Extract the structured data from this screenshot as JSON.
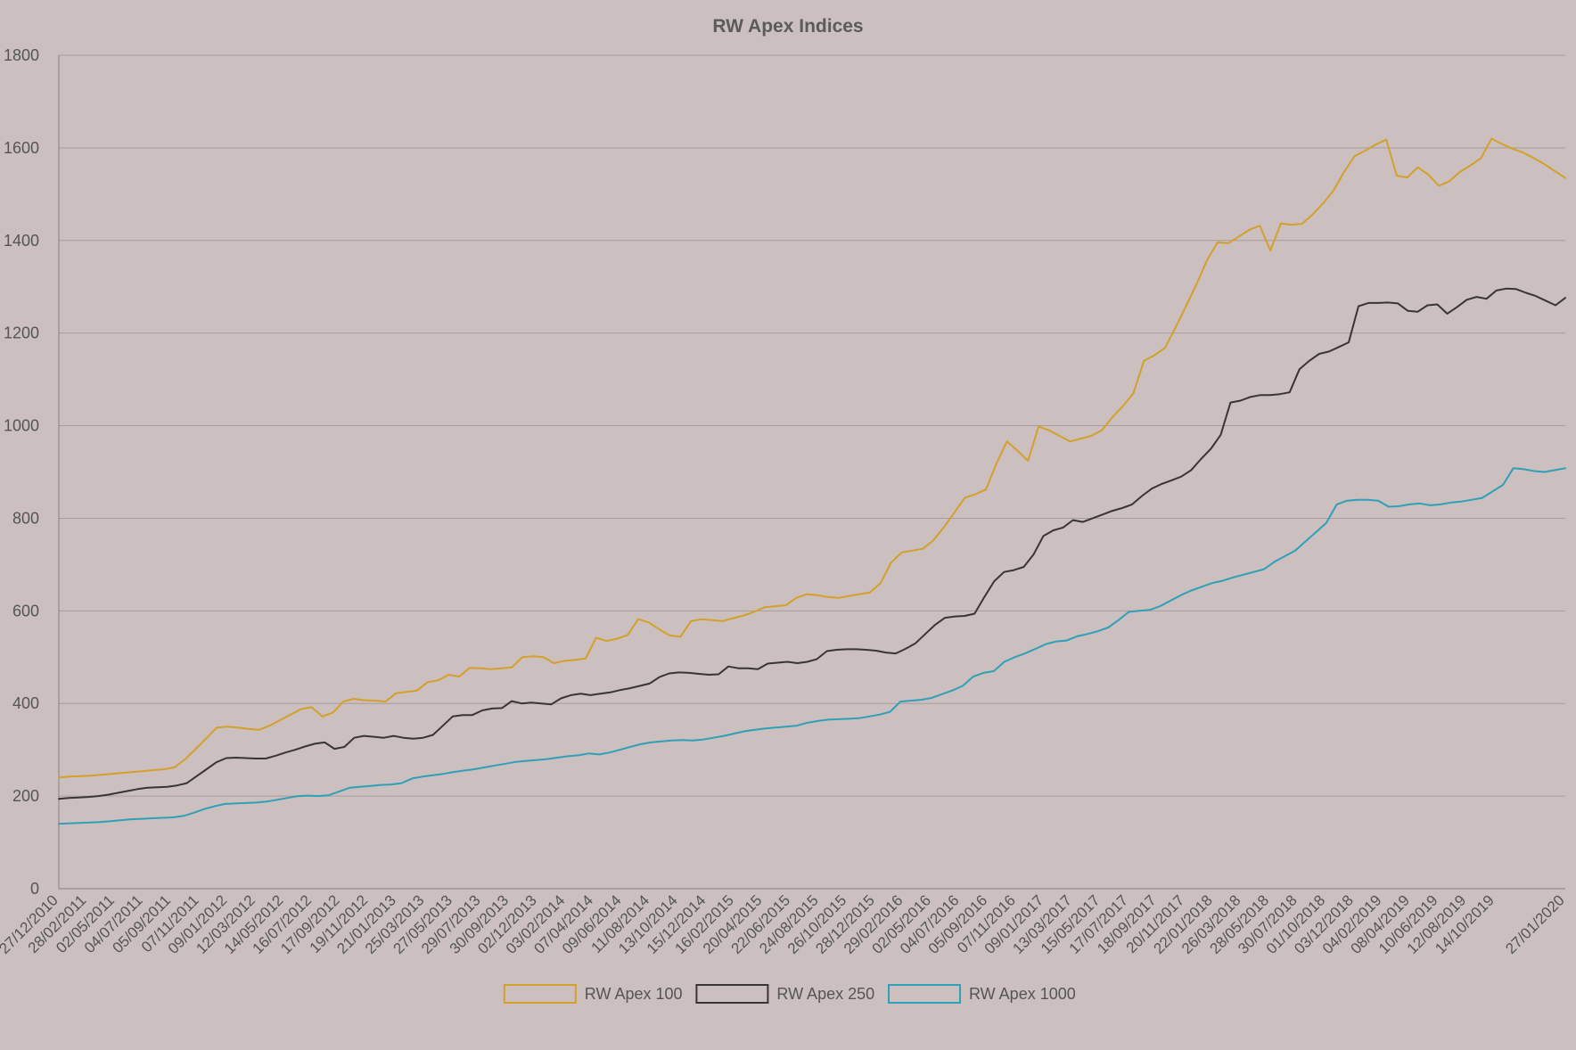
{
  "chart_data": {
    "type": "line",
    "title": "RW Apex Indices",
    "xlabel": "",
    "ylabel": "",
    "ylim": [
      0,
      1800
    ],
    "y_ticks": [
      0,
      200,
      400,
      600,
      800,
      1000,
      1200,
      1400,
      1600,
      1800
    ],
    "grid": true,
    "legend_position": "bottom-center",
    "x_tick_labels": [
      "27/12/2010",
      "28/02/2011",
      "02/05/2011",
      "04/07/2011",
      "05/09/2011",
      "07/11/2011",
      "09/01/2012",
      "12/03/2012",
      "14/05/2012",
      "16/07/2012",
      "17/09/2012",
      "19/11/2012",
      "21/01/2013",
      "25/03/2013",
      "27/05/2013",
      "29/07/2013",
      "30/09/2013",
      "02/12/2013",
      "03/02/2014",
      "07/04/2014",
      "09/06/2014",
      "11/08/2014",
      "13/10/2014",
      "15/12/2014",
      "16/02/2015",
      "20/04/2015",
      "22/06/2015",
      "24/08/2015",
      "26/10/2015",
      "28/12/2015",
      "29/02/2016",
      "02/05/2016",
      "04/07/2016",
      "05/09/2016",
      "07/11/2016",
      "09/01/2017",
      "13/03/2017",
      "15/05/2017",
      "17/07/2017",
      "18/09/2017",
      "20/11/2017",
      "22/01/2018",
      "26/03/2018",
      "28/05/2018",
      "30/07/2018",
      "01/10/2018",
      "03/12/2018",
      "04/02/2019",
      "08/04/2019",
      "10/06/2019",
      "12/08/2019",
      "14/10/2019",
      "27/01/2020"
    ],
    "series": [
      {
        "name": "RW Apex 100",
        "color": "#d4a02a",
        "values": [
          240,
          242,
          243,
          244,
          246,
          248,
          250,
          252,
          254,
          256,
          258,
          262,
          280,
          302,
          325,
          348,
          350,
          348,
          345,
          343,
          352,
          364,
          376,
          388,
          392,
          372,
          380,
          404,
          410,
          407,
          406,
          404,
          422,
          425,
          428,
          446,
          450,
          462,
          458,
          477,
          476,
          474,
          476,
          478,
          500,
          502,
          500,
          487,
          492,
          494,
          497,
          542,
          535,
          540,
          548,
          582,
          575,
          560,
          547,
          544,
          578,
          582,
          580,
          578,
          584,
          590,
          598,
          608,
          610,
          612,
          628,
          636,
          634,
          630,
          628,
          632,
          636,
          640,
          660,
          704,
          726,
          730,
          734,
          752,
          780,
          812,
          844,
          852,
          862,
          918,
          966,
          946,
          924,
          998,
          990,
          978,
          966,
          972,
          978,
          990,
          1018,
          1042,
          1070,
          1140,
          1152,
          1168,
          1212,
          1258,
          1306,
          1358,
          1396,
          1394,
          1408,
          1423,
          1432,
          1378,
          1437,
          1434,
          1436,
          1456,
          1480,
          1508,
          1548,
          1582,
          1594,
          1607,
          1618,
          1540,
          1536,
          1558,
          1542,
          1518,
          1528,
          1548,
          1562,
          1578,
          1620,
          1608,
          1598,
          1590,
          1578,
          1565,
          1550,
          1535
        ]
      },
      {
        "name": "RW Apex 250",
        "color": "#3a3535",
        "values": [
          194,
          196,
          197,
          198,
          200,
          203,
          207,
          211,
          215,
          218,
          219,
          220,
          223,
          228,
          243,
          258,
          273,
          282,
          283,
          282,
          281,
          281,
          287,
          294,
          300,
          307,
          313,
          316,
          302,
          306,
          326,
          330,
          328,
          326,
          330,
          326,
          324,
          326,
          332,
          352,
          372,
          375,
          375,
          385,
          389,
          390,
          405,
          400,
          402,
          400,
          398,
          411,
          418,
          421,
          418,
          421,
          424,
          429,
          433,
          438,
          443,
          457,
          465,
          467,
          466,
          464,
          462,
          463,
          480,
          476,
          476,
          474,
          486,
          488,
          490,
          487,
          490,
          496,
          513,
          516,
          517,
          517,
          516,
          514,
          510,
          508,
          518,
          530,
          550,
          570,
          585,
          588,
          589,
          594,
          630,
          664,
          684,
          688,
          695,
          722,
          762,
          774,
          780,
          796,
          792,
          800,
          808,
          816,
          822,
          830,
          848,
          864,
          874,
          882,
          890,
          904,
          928,
          950,
          980,
          1050,
          1054,
          1062,
          1066,
          1066,
          1068,
          1072,
          1122,
          1140,
          1155,
          1160,
          1170,
          1180,
          1258,
          1265,
          1265,
          1266,
          1264,
          1248,
          1246,
          1260,
          1262,
          1242,
          1256,
          1272,
          1278,
          1274,
          1292,
          1296,
          1295,
          1287,
          1280,
          1270,
          1260,
          1276
        ]
      },
      {
        "name": "RW Apex 1000",
        "color": "#2fa0b8",
        "values": [
          140,
          141,
          142,
          143,
          144,
          146,
          148,
          150,
          151,
          152,
          153,
          154,
          157,
          164,
          172,
          178,
          183,
          184,
          185,
          186,
          188,
          192,
          196,
          200,
          201,
          200,
          202,
          210,
          218,
          220,
          222,
          224,
          225,
          228,
          238,
          242,
          245,
          248,
          252,
          255,
          258,
          262,
          266,
          270,
          274,
          276,
          278,
          280,
          283,
          286,
          288,
          292,
          290,
          294,
          300,
          306,
          312,
          316,
          318,
          320,
          321,
          320,
          322,
          326,
          330,
          335,
          340,
          343,
          346,
          348,
          350,
          352,
          358,
          362,
          365,
          366,
          367,
          368,
          372,
          376,
          382,
          404,
          406,
          408,
          412,
          420,
          428,
          438,
          458,
          466,
          470,
          490,
          500,
          508,
          518,
          528,
          534,
          536,
          545,
          550,
          556,
          564,
          580,
          598,
          600,
          602,
          610,
          622,
          634,
          644,
          652,
          660,
          665,
          672,
          678,
          684,
          690,
          706,
          718,
          730,
          750,
          770,
          790,
          830,
          838,
          840,
          840,
          838,
          825,
          826,
          830,
          832,
          828,
          830,
          834,
          836,
          840,
          844,
          858,
          872,
          908,
          906,
          902,
          900,
          904,
          908
        ]
      }
    ]
  }
}
